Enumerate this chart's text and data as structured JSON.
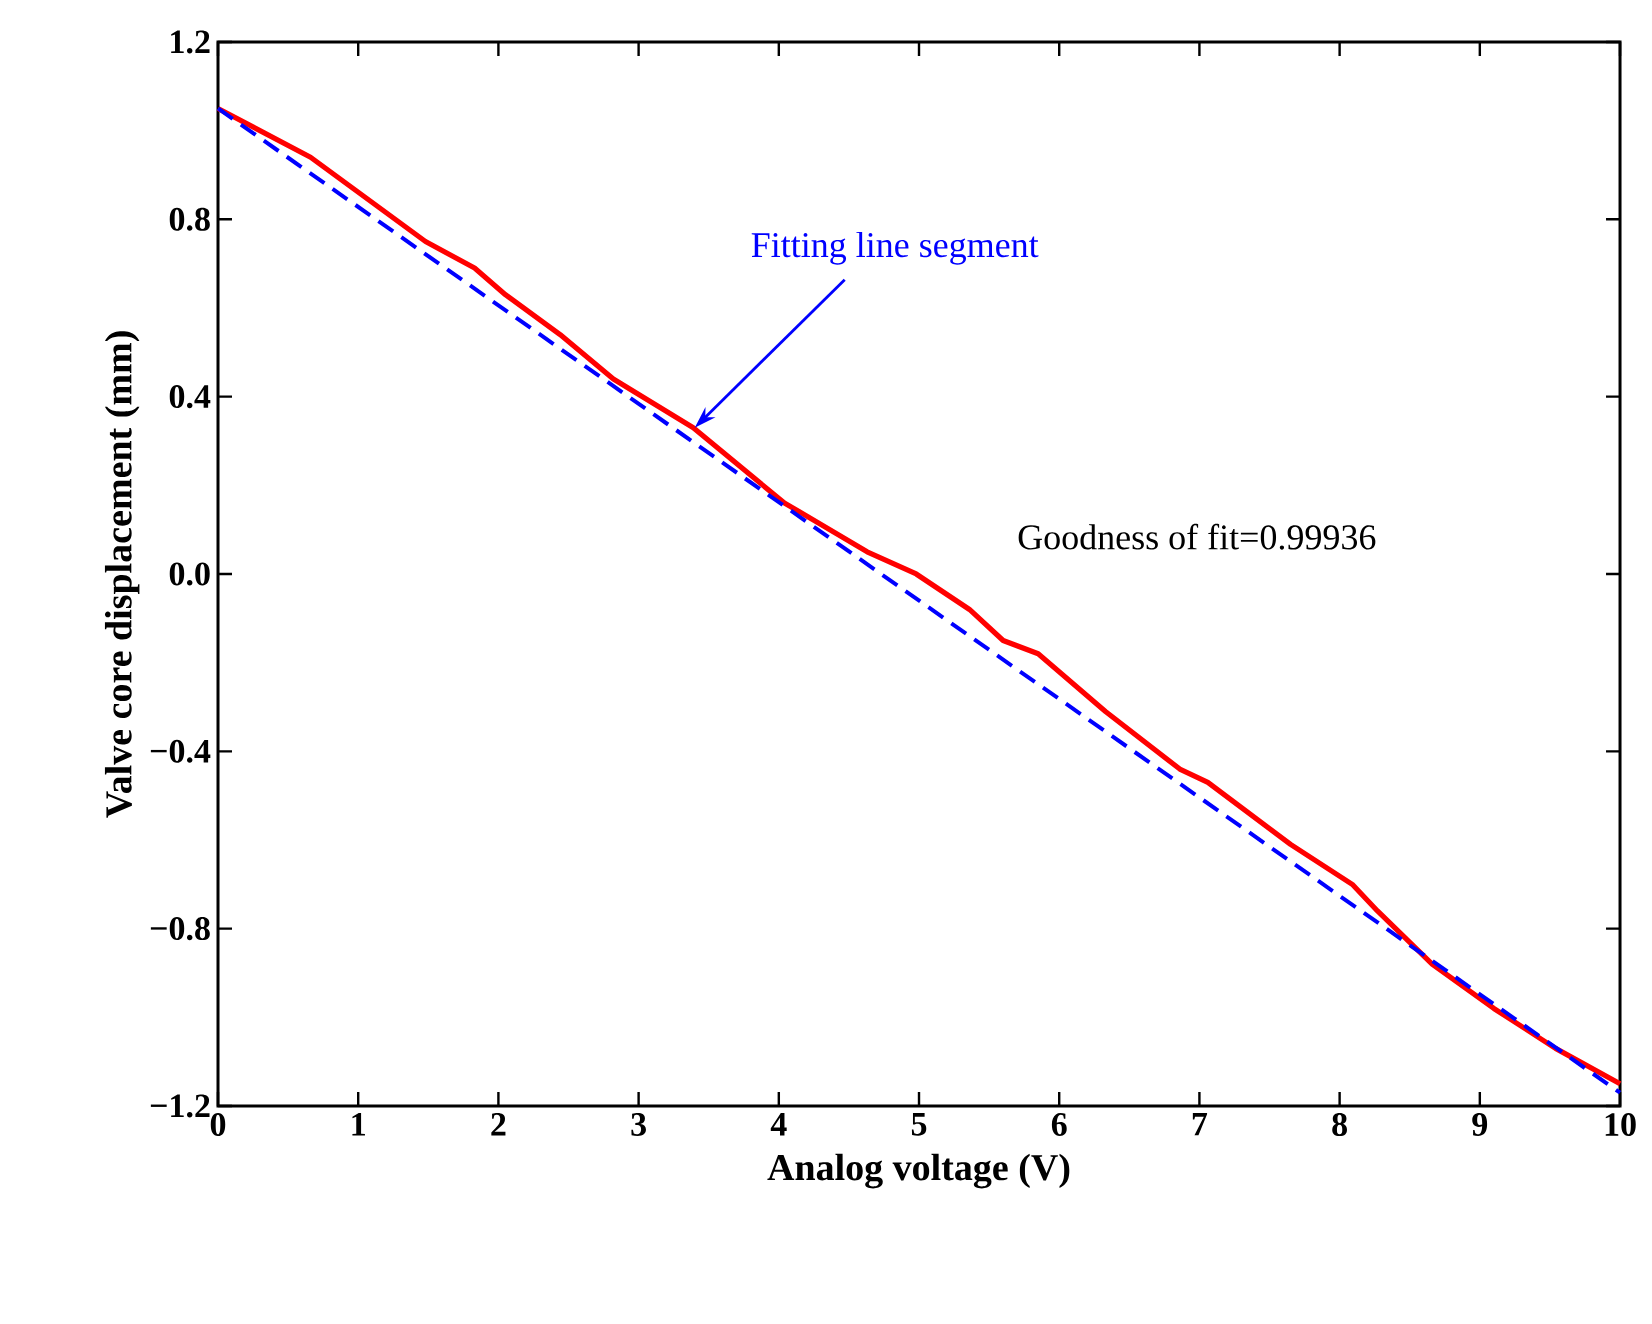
{
  "chart_data": {
    "type": "line",
    "xlabel": "Analog voltage (V)",
    "ylabel": "Valve core displacement (mm)",
    "xlim": [
      0,
      10
    ],
    "xticks": [
      0,
      1,
      2,
      3,
      4,
      5,
      6,
      7,
      8,
      9,
      10
    ],
    "ylim": [
      -1.2,
      1.2
    ],
    "yticks": [
      {
        "value": -1.2,
        "label": "−1.2"
      },
      {
        "value": -0.8,
        "label": "−0.8"
      },
      {
        "value": -0.4,
        "label": "−0.4"
      },
      {
        "value": 0,
        "label": "0.0"
      },
      0.4,
      0.8,
      1.2
    ],
    "grid": false,
    "marker": "none",
    "series": [
      {
        "color": "#ff0000",
        "line_style": "solid",
        "x": [
          0,
          0.66,
          1.48,
          1.83,
          2.05,
          2.44,
          2.82,
          3.39,
          4.04,
          4.15,
          4.63,
          4.98,
          5.36,
          5.6,
          5.85,
          6.33,
          6.86,
          7.06,
          7.65,
          8.09,
          8.27,
          8.66,
          9.1,
          9.54,
          10
        ],
        "values": [
          1.05,
          0.94,
          0.75,
          0.69,
          0.63,
          0.54,
          0.44,
          0.33,
          0.16,
          0.14,
          0.05,
          0.0,
          -0.08,
          -0.15,
          -0.18,
          -0.31,
          -0.44,
          -0.47,
          -0.61,
          -0.7,
          -0.76,
          -0.88,
          -0.98,
          -1.07,
          -1.15
        ]
      },
      {
        "color": "#0000ff",
        "line_style": "dashed",
        "x": [
          0,
          10
        ],
        "values": [
          1.05,
          -1.17
        ]
      }
    ],
    "annotations": [
      {
        "text": "Fitting line segment",
        "x": 3.4,
        "y": 0.33
      },
      "Goodness of fit=0.99936"
    ]
  }
}
